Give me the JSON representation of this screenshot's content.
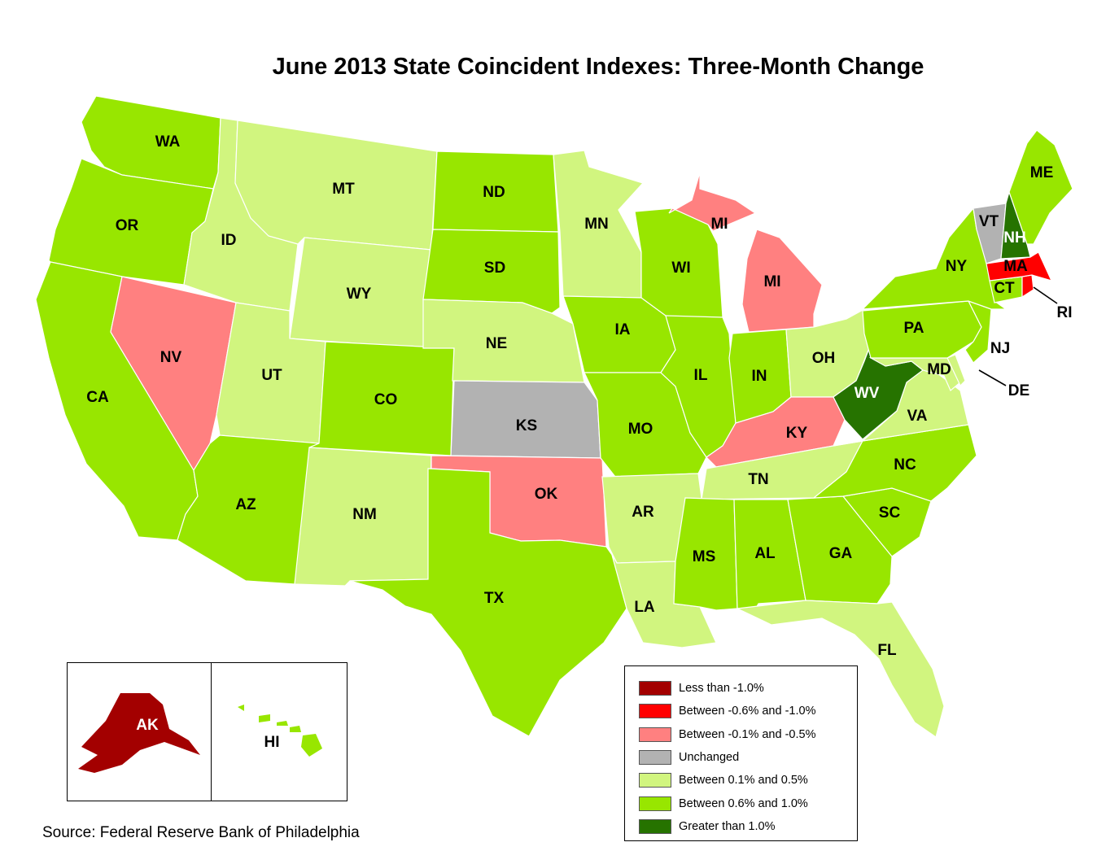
{
  "title": "June 2013 State Coincident Indexes: Three-Month Change",
  "source": "Source: Federal Reserve Bank of Philadelphia",
  "colors": {
    "less_than_neg_1_0": "#a30000",
    "neg_0_6_to_neg_1_0": "#ff0000",
    "neg_0_1_to_neg_0_5": "#ff8080",
    "unchanged": "#b2b2b2",
    "pos_0_1_to_0_5": "#d1f57f",
    "pos_0_6_to_1_0": "#98e600",
    "greater_than_1_0": "#267300",
    "border": "#ffffff"
  },
  "legend": [
    {
      "key": "less_than_neg_1_0",
      "label": "Less than -1.0%"
    },
    {
      "key": "neg_0_6_to_neg_1_0",
      "label": "Between -0.6% and -1.0%"
    },
    {
      "key": "neg_0_1_to_neg_0_5",
      "label": "Between -0.1% and -0.5%"
    },
    {
      "key": "unchanged",
      "label": "Unchanged"
    },
    {
      "key": "pos_0_1_to_0_5",
      "label": "Between 0.1% and 0.5%"
    },
    {
      "key": "pos_0_6_to_1_0",
      "label": "Between 0.6% and 1.0%"
    },
    {
      "key": "greater_than_1_0",
      "label": "Greater than 1.0%"
    }
  ],
  "states": {
    "WA": "pos_0_6_to_1_0",
    "OR": "pos_0_6_to_1_0",
    "CA": "pos_0_6_to_1_0",
    "ID": "pos_0_1_to_0_5",
    "NV": "neg_0_1_to_neg_0_5",
    "MT": "pos_0_1_to_0_5",
    "WY": "pos_0_1_to_0_5",
    "UT": "pos_0_1_to_0_5",
    "AZ": "pos_0_6_to_1_0",
    "CO": "pos_0_6_to_1_0",
    "NM": "pos_0_1_to_0_5",
    "ND": "pos_0_6_to_1_0",
    "SD": "pos_0_6_to_1_0",
    "NE": "pos_0_1_to_0_5",
    "KS": "unchanged",
    "OK": "neg_0_1_to_neg_0_5",
    "TX": "pos_0_6_to_1_0",
    "MN": "pos_0_1_to_0_5",
    "IA": "pos_0_6_to_1_0",
    "MO": "pos_0_6_to_1_0",
    "AR": "pos_0_1_to_0_5",
    "LA": "pos_0_1_to_0_5",
    "WI": "pos_0_6_to_1_0",
    "IL": "pos_0_6_to_1_0",
    "MI": "neg_0_1_to_neg_0_5",
    "IN": "pos_0_6_to_1_0",
    "OH": "pos_0_1_to_0_5",
    "KY": "neg_0_1_to_neg_0_5",
    "TN": "pos_0_1_to_0_5",
    "MS": "pos_0_6_to_1_0",
    "AL": "pos_0_6_to_1_0",
    "GA": "pos_0_6_to_1_0",
    "FL": "pos_0_1_to_0_5",
    "SC": "pos_0_6_to_1_0",
    "NC": "pos_0_6_to_1_0",
    "VA": "pos_0_1_to_0_5",
    "WV": "greater_than_1_0",
    "MD": "pos_0_1_to_0_5",
    "DE": "pos_0_1_to_0_5",
    "PA": "pos_0_6_to_1_0",
    "NJ": "pos_0_6_to_1_0",
    "NY": "pos_0_6_to_1_0",
    "CT": "pos_0_6_to_1_0",
    "RI": "neg_0_6_to_neg_1_0",
    "MA": "neg_0_6_to_neg_1_0",
    "VT": "unchanged",
    "NH": "greater_than_1_0",
    "ME": "pos_0_6_to_1_0",
    "AK": "less_than_neg_1_0",
    "HI": "pos_0_6_to_1_0"
  },
  "labels": {
    "WA": "WA",
    "OR": "OR",
    "CA": "CA",
    "ID": "ID",
    "NV": "NV",
    "MT": "MT",
    "WY": "WY",
    "UT": "UT",
    "AZ": "AZ",
    "CO": "CO",
    "NM": "NM",
    "ND": "ND",
    "SD": "SD",
    "NE": "NE",
    "KS": "KS",
    "OK": "OK",
    "TX": "TX",
    "MN": "MN",
    "IA": "IA",
    "MO": "MO",
    "AR": "AR",
    "LA": "LA",
    "WI": "WI",
    "IL": "IL",
    "MI": "MI",
    "IN": "IN",
    "OH": "OH",
    "KY": "KY",
    "TN": "TN",
    "MS": "MS",
    "AL": "AL",
    "GA": "GA",
    "FL": "FL",
    "SC": "SC",
    "NC": "NC",
    "VA": "VA",
    "WV": "WV",
    "MD": "MD",
    "DE": "DE",
    "PA": "PA",
    "NJ": "NJ",
    "NY": "NY",
    "CT": "CT",
    "RI": "RI",
    "MA": "MA",
    "VT": "VT",
    "NH": "NH",
    "ME": "ME",
    "AK": "AK",
    "HI": "HI"
  }
}
